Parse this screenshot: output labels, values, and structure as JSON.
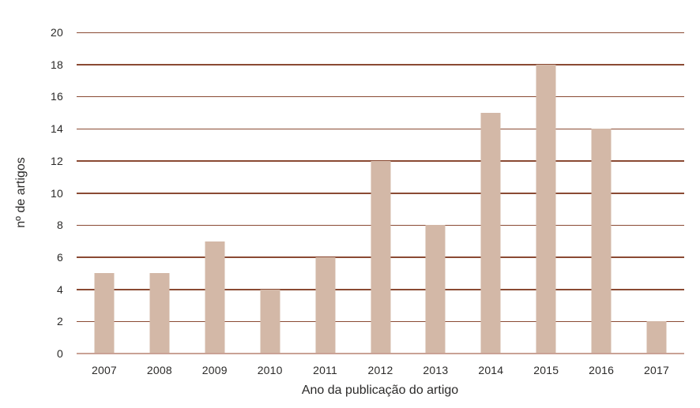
{
  "chart_data": {
    "type": "bar",
    "title": "",
    "categories": [
      "2007",
      "2008",
      "2009",
      "2010",
      "2011",
      "2012",
      "2013",
      "2014",
      "2015",
      "2016",
      "2017"
    ],
    "values": [
      5,
      5,
      7,
      4,
      6,
      12,
      8,
      15,
      18,
      14,
      2
    ],
    "xlabel": "Ano da publicação do artigo",
    "ylabel": "nº de artigos",
    "ylim": [
      0,
      20
    ],
    "yticks": [
      0,
      2,
      4,
      6,
      8,
      10,
      12,
      14,
      16,
      18,
      20
    ],
    "grid": "horizontal",
    "legend": "none",
    "colors": {
      "bar": "#d3b8a7",
      "gridline": "#8a4a33",
      "baseline": "#c9a295",
      "text": "#2b2a29",
      "background": "#ffffff"
    }
  }
}
